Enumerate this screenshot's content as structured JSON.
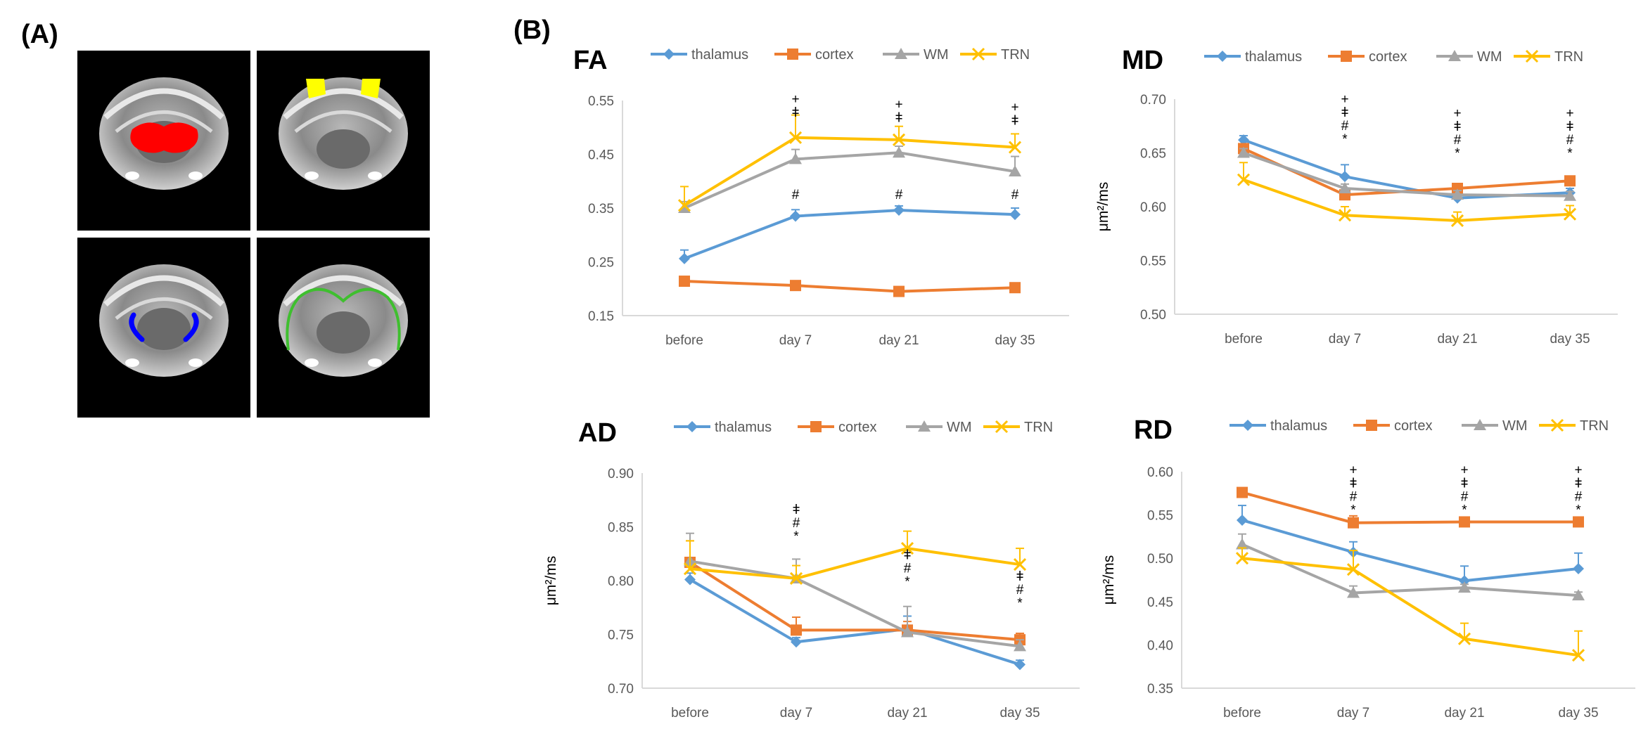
{
  "panel_labels": {
    "a": "(A)",
    "b": "(B)"
  },
  "colors": {
    "thalamus": "#5B9BD5",
    "cortex": "#ED7D31",
    "WM": "#A5A5A5",
    "TRN": "#FFC000",
    "roi_red": "#FF0000",
    "roi_yellow": "#FFFF00",
    "roi_blue": "#0000FF",
    "roi_green": "#3FBF2F"
  },
  "brain_images": [
    {
      "roi": "thalamus",
      "color": "#FF0000"
    },
    {
      "roi": "cortex",
      "color": "#FFFF00"
    },
    {
      "roi": "TRN",
      "color": "#0000FF"
    },
    {
      "roi": "WM",
      "color": "#3FBF2F"
    }
  ],
  "chart_data": [
    {
      "type": "line",
      "title": "FA",
      "ylabel": "",
      "categories": [
        "before",
        "day 7",
        "day 21",
        "day 35"
      ],
      "ylim": [
        0.15,
        0.55
      ],
      "yticks": [
        "0.15",
        "0.25",
        "0.35",
        "0.45",
        "0.55"
      ],
      "legend_position": "top",
      "series": [
        {
          "name": "thalamus",
          "marker": "diamond",
          "values": [
            0.256,
            0.335,
            0.346,
            0.338
          ],
          "errors": [
            0.016,
            0.012,
            0.008,
            0.012
          ]
        },
        {
          "name": "cortex",
          "marker": "square",
          "values": [
            0.214,
            0.206,
            0.195,
            0.202
          ],
          "errors": [
            0.004,
            0.004,
            0.004,
            0.004
          ]
        },
        {
          "name": "WM",
          "marker": "triangle",
          "values": [
            0.35,
            0.441,
            0.453,
            0.418
          ],
          "errors": [
            0.012,
            0.018,
            0.012,
            0.028
          ]
        },
        {
          "name": "TRN",
          "marker": "x",
          "values": [
            0.355,
            0.481,
            0.477,
            0.463
          ],
          "errors": [
            0.035,
            0.042,
            0.025,
            0.025
          ]
        }
      ],
      "annotations": [
        {
          "x": "day 7",
          "y": 0.545,
          "lines": [
            "+",
            "ǂ"
          ]
        },
        {
          "x": "day 21",
          "y": 0.535,
          "lines": [
            "+",
            "ǂ"
          ]
        },
        {
          "x": "day 35",
          "y": 0.53,
          "lines": [
            "+",
            "ǂ"
          ]
        },
        {
          "x": "day 7",
          "y": 0.367,
          "lines": [
            "#"
          ]
        },
        {
          "x": "day 21",
          "y": 0.367,
          "lines": [
            "#"
          ]
        },
        {
          "x": "day 35",
          "y": 0.367,
          "lines": [
            "#"
          ]
        }
      ]
    },
    {
      "type": "line",
      "title": "MD",
      "ylabel": "μm²/ms",
      "categories": [
        "before",
        "day 7",
        "day 21",
        "day 35"
      ],
      "ylim": [
        0.5,
        0.7
      ],
      "yticks": [
        "0.50",
        "0.55",
        "0.60",
        "0.65",
        "0.70"
      ],
      "legend_position": "top",
      "series": [
        {
          "name": "thalamus",
          "marker": "diamond",
          "values": [
            0.662,
            0.628,
            0.608,
            0.613
          ],
          "errors": [
            0.004,
            0.011,
            0.004,
            0.004
          ]
        },
        {
          "name": "cortex",
          "marker": "square",
          "values": [
            0.654,
            0.611,
            0.617,
            0.624
          ],
          "errors": [
            0.004,
            0.004,
            0.004,
            0.004
          ]
        },
        {
          "name": "WM",
          "marker": "triangle",
          "values": [
            0.65,
            0.617,
            0.611,
            0.61
          ],
          "errors": [
            0.004,
            0.004,
            0.004,
            0.004
          ]
        },
        {
          "name": "TRN",
          "marker": "x",
          "values": [
            0.625,
            0.592,
            0.587,
            0.593
          ],
          "errors": [
            0.016,
            0.008,
            0.008,
            0.008
          ]
        }
      ],
      "annotations": [
        {
          "x": "day 7",
          "y": 0.696,
          "lines": [
            "+",
            "ǂ",
            "#",
            "*"
          ]
        },
        {
          "x": "day 21",
          "y": 0.683,
          "lines": [
            "+",
            "ǂ",
            "#",
            "*"
          ]
        },
        {
          "x": "day 35",
          "y": 0.683,
          "lines": [
            "+",
            "ǂ",
            "#",
            "*"
          ]
        }
      ]
    },
    {
      "type": "line",
      "title": "AD",
      "ylabel": "μm²/ms",
      "categories": [
        "before",
        "day 7",
        "day 21",
        "day 35"
      ],
      "ylim": [
        0.7,
        0.9
      ],
      "yticks": [
        "0.70",
        "0.75",
        "0.80",
        "0.85",
        "0.90"
      ],
      "legend_position": "top",
      "series": [
        {
          "name": "thalamus",
          "marker": "diamond",
          "values": [
            0.801,
            0.743,
            0.755,
            0.722
          ],
          "errors": [
            0.006,
            0.004,
            0.012,
            0.004
          ]
        },
        {
          "name": "cortex",
          "marker": "square",
          "values": [
            0.817,
            0.754,
            0.754,
            0.745
          ],
          "errors": [
            0.02,
            0.012,
            0.008,
            0.006
          ]
        },
        {
          "name": "WM",
          "marker": "triangle",
          "values": [
            0.818,
            0.802,
            0.752,
            0.739
          ],
          "errors": [
            0.026,
            0.018,
            0.024,
            0.006
          ]
        },
        {
          "name": "TRN",
          "marker": "x",
          "values": [
            0.811,
            0.802,
            0.83,
            0.815
          ],
          "errors": [
            0.026,
            0.012,
            0.016,
            0.015
          ]
        }
      ],
      "annotations": [
        {
          "x": "day 7",
          "y": 0.862,
          "lines": [
            "ǂ",
            "#",
            "*"
          ]
        },
        {
          "x": "day 21",
          "y": 0.82,
          "lines": [
            "ǂ",
            "#",
            "*"
          ]
        },
        {
          "x": "day 35",
          "y": 0.8,
          "lines": [
            "ǂ",
            "#",
            "*"
          ]
        }
      ]
    },
    {
      "type": "line",
      "title": "RD",
      "ylabel": "μm²/ms",
      "categories": [
        "before",
        "day 7",
        "day 21",
        "day 35"
      ],
      "ylim": [
        0.35,
        0.6
      ],
      "yticks": [
        "0.35",
        "0.40",
        "0.45",
        "0.50",
        "0.55",
        "0.60"
      ],
      "legend_position": "top",
      "series": [
        {
          "name": "thalamus",
          "marker": "diamond",
          "values": [
            0.544,
            0.507,
            0.474,
            0.488
          ],
          "errors": [
            0.017,
            0.012,
            0.017,
            0.018
          ]
        },
        {
          "name": "cortex",
          "marker": "square",
          "values": [
            0.576,
            0.541,
            0.542,
            0.542
          ],
          "errors": [
            0.004,
            0.008,
            0.004,
            0.004
          ]
        },
        {
          "name": "WM",
          "marker": "triangle",
          "values": [
            0.516,
            0.46,
            0.466,
            0.457
          ],
          "errors": [
            0.012,
            0.008,
            0.004,
            0.004
          ]
        },
        {
          "name": "TRN",
          "marker": "x",
          "values": [
            0.5,
            0.487,
            0.407,
            0.388
          ],
          "errors": [
            0.012,
            0.022,
            0.018,
            0.028
          ]
        }
      ],
      "annotations": [
        {
          "x": "day 7",
          "y": 0.597,
          "lines": [
            "+",
            "ǂ",
            "#",
            "*"
          ]
        },
        {
          "x": "day 21",
          "y": 0.597,
          "lines": [
            "+",
            "ǂ",
            "#",
            "*"
          ]
        },
        {
          "x": "day 35",
          "y": 0.597,
          "lines": [
            "+",
            "ǂ",
            "#",
            "*"
          ]
        }
      ]
    }
  ]
}
